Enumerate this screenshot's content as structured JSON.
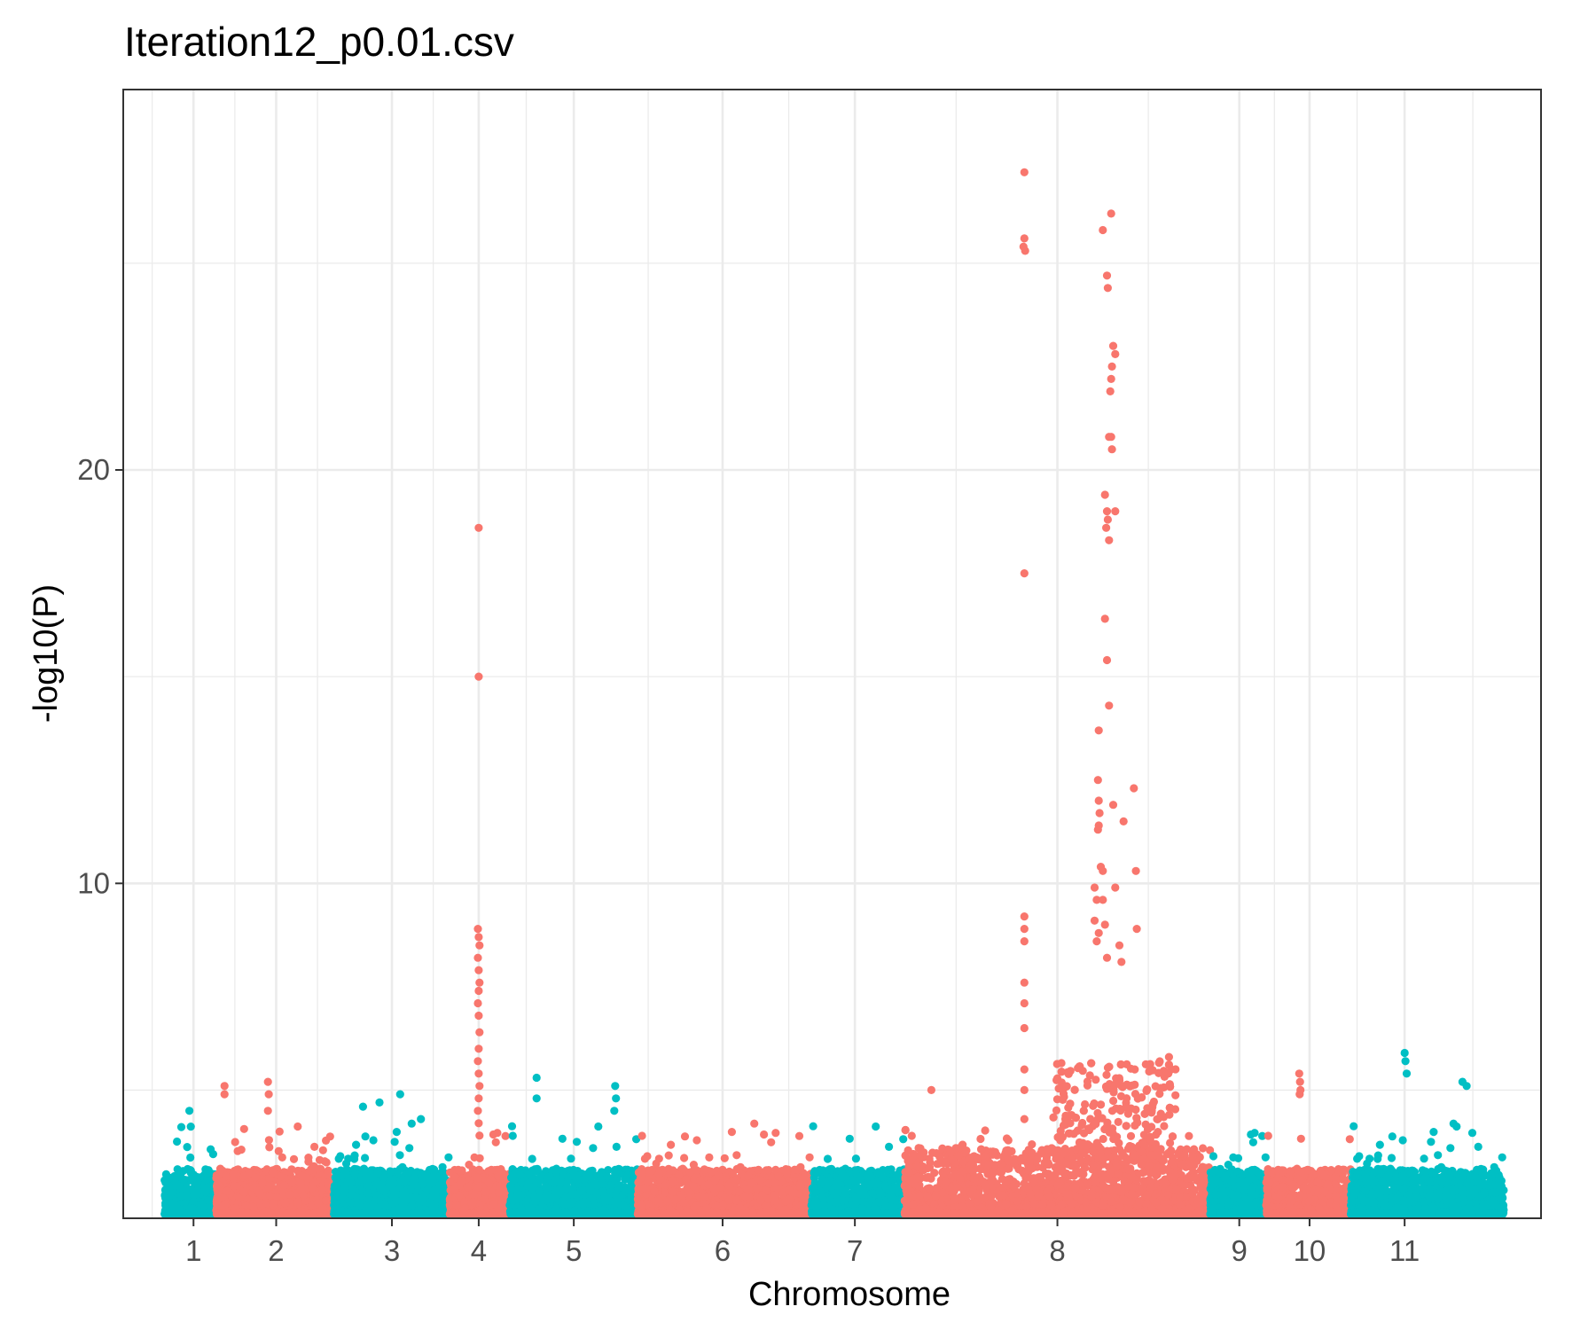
{
  "chart_data": {
    "type": "scatter",
    "title": "Iteration12_p0.01.csv",
    "xlabel": "Chromosome",
    "ylabel": "-log10(P)",
    "xlim": [
      -0.7,
      33.6
    ],
    "ylim": [
      1.9,
      29.2
    ],
    "y_major_ticks": [
      10,
      20
    ],
    "y_minor_ticks": [
      5,
      15,
      25
    ],
    "x_ticks": [
      {
        "label": "1",
        "x": 1.0
      },
      {
        "label": "2",
        "x": 3.0
      },
      {
        "label": "3",
        "x": 5.8
      },
      {
        "label": "4",
        "x": 7.9
      },
      {
        "label": "5",
        "x": 10.2
      },
      {
        "label": "6",
        "x": 13.8
      },
      {
        "label": "7",
        "x": 17.0
      },
      {
        "label": "8",
        "x": 21.9
      },
      {
        "label": "9",
        "x": 26.3
      },
      {
        "label": "10",
        "x": 28.0
      },
      {
        "label": "11",
        "x": 30.3
      }
    ],
    "x_minor_gridlines": [
      0.0,
      2.0,
      4.0,
      6.8,
      9.05,
      12.0,
      15.4,
      19.45,
      24.1,
      27.15,
      29.15,
      31.95
    ],
    "colors": {
      "odd": "#00BFC4",
      "even": "#F8766D"
    },
    "chromosomes": [
      {
        "chr": "1",
        "start": 0.3,
        "end": 1.55,
        "color": "#00BFC4"
      },
      {
        "chr": "2",
        "start": 1.55,
        "end": 4.4,
        "color": "#F8766D"
      },
      {
        "chr": "3",
        "start": 4.4,
        "end": 7.2,
        "color": "#00BFC4"
      },
      {
        "chr": "4",
        "start": 7.2,
        "end": 8.65,
        "color": "#F8766D"
      },
      {
        "chr": "5",
        "start": 8.65,
        "end": 11.75,
        "color": "#00BFC4"
      },
      {
        "chr": "6",
        "start": 11.75,
        "end": 15.95,
        "color": "#F8766D"
      },
      {
        "chr": "7",
        "start": 15.95,
        "end": 18.2,
        "color": "#00BFC4"
      },
      {
        "chr": "8",
        "start": 18.2,
        "end": 25.6,
        "color": "#F8766D"
      },
      {
        "chr": "9",
        "start": 25.6,
        "end": 26.95,
        "color": "#00BFC4"
      },
      {
        "chr": "10",
        "start": 26.95,
        "end": 29.0,
        "color": "#F8766D"
      },
      {
        "chr": "11",
        "start": 29.0,
        "end": 32.7,
        "color": "#00BFC4"
      }
    ],
    "peak_points": [
      {
        "x": 21.1,
        "y": 27.2
      },
      {
        "x": 21.1,
        "y": 25.6
      },
      {
        "x": 21.12,
        "y": 25.3
      },
      {
        "x": 21.08,
        "y": 25.4
      },
      {
        "x": 21.1,
        "y": 17.5
      },
      {
        "x": 21.1,
        "y": 9.2
      },
      {
        "x": 21.1,
        "y": 8.9
      },
      {
        "x": 21.1,
        "y": 8.6
      },
      {
        "x": 21.1,
        "y": 7.6
      },
      {
        "x": 21.1,
        "y": 7.1
      },
      {
        "x": 21.1,
        "y": 6.5
      },
      {
        "x": 21.1,
        "y": 5.5
      },
      {
        "x": 21.1,
        "y": 5.0
      },
      {
        "x": 21.1,
        "y": 4.3
      },
      {
        "x": 23.0,
        "y": 25.8
      },
      {
        "x": 23.2,
        "y": 26.2
      },
      {
        "x": 23.1,
        "y": 24.7
      },
      {
        "x": 23.12,
        "y": 24.4
      },
      {
        "x": 23.25,
        "y": 23.0
      },
      {
        "x": 23.3,
        "y": 22.8
      },
      {
        "x": 23.22,
        "y": 22.5
      },
      {
        "x": 23.2,
        "y": 22.2
      },
      {
        "x": 23.18,
        "y": 21.9
      },
      {
        "x": 23.15,
        "y": 20.8
      },
      {
        "x": 23.22,
        "y": 20.5
      },
      {
        "x": 23.2,
        "y": 20.8
      },
      {
        "x": 23.05,
        "y": 19.4
      },
      {
        "x": 23.1,
        "y": 19.0
      },
      {
        "x": 23.12,
        "y": 18.8
      },
      {
        "x": 23.08,
        "y": 18.6
      },
      {
        "x": 23.15,
        "y": 18.3
      },
      {
        "x": 23.3,
        "y": 19.0
      },
      {
        "x": 23.05,
        "y": 16.4
      },
      {
        "x": 23.1,
        "y": 15.4
      },
      {
        "x": 23.15,
        "y": 14.3
      },
      {
        "x": 22.9,
        "y": 13.7
      },
      {
        "x": 22.88,
        "y": 12.5
      },
      {
        "x": 22.9,
        "y": 12.0
      },
      {
        "x": 22.92,
        "y": 11.7
      },
      {
        "x": 22.88,
        "y": 11.3
      },
      {
        "x": 22.9,
        "y": 11.4
      },
      {
        "x": 23.25,
        "y": 11.9
      },
      {
        "x": 23.5,
        "y": 11.5
      },
      {
        "x": 23.75,
        "y": 12.3
      },
      {
        "x": 22.95,
        "y": 10.4
      },
      {
        "x": 23.0,
        "y": 10.3
      },
      {
        "x": 23.8,
        "y": 10.3
      },
      {
        "x": 22.8,
        "y": 9.9
      },
      {
        "x": 22.85,
        "y": 9.6
      },
      {
        "x": 23.0,
        "y": 9.6
      },
      {
        "x": 23.3,
        "y": 9.9
      },
      {
        "x": 23.82,
        "y": 8.9
      },
      {
        "x": 22.8,
        "y": 9.1
      },
      {
        "x": 22.9,
        "y": 8.8
      },
      {
        "x": 23.05,
        "y": 9.0
      },
      {
        "x": 23.4,
        "y": 8.5
      },
      {
        "x": 22.85,
        "y": 8.6
      },
      {
        "x": 23.1,
        "y": 8.2
      },
      {
        "x": 23.45,
        "y": 8.1
      },
      {
        "x": 7.9,
        "y": 18.6
      },
      {
        "x": 7.9,
        "y": 15.0
      },
      {
        "x": 7.88,
        "y": 8.9
      },
      {
        "x": 7.9,
        "y": 8.7
      },
      {
        "x": 7.92,
        "y": 8.5
      },
      {
        "x": 7.88,
        "y": 8.2
      },
      {
        "x": 7.9,
        "y": 7.9
      },
      {
        "x": 7.92,
        "y": 7.6
      },
      {
        "x": 7.9,
        "y": 7.4
      },
      {
        "x": 7.88,
        "y": 7.1
      },
      {
        "x": 7.9,
        "y": 6.8
      },
      {
        "x": 7.92,
        "y": 6.4
      },
      {
        "x": 7.9,
        "y": 6.0
      },
      {
        "x": 7.88,
        "y": 5.7
      },
      {
        "x": 7.9,
        "y": 5.4
      },
      {
        "x": 7.92,
        "y": 5.1
      },
      {
        "x": 7.9,
        "y": 4.8
      },
      {
        "x": 7.88,
        "y": 4.5
      },
      {
        "x": 7.9,
        "y": 4.2
      },
      {
        "x": 7.92,
        "y": 3.9
      },
      {
        "x": 27.75,
        "y": 5.4
      },
      {
        "x": 27.77,
        "y": 5.2
      },
      {
        "x": 27.78,
        "y": 5.0
      },
      {
        "x": 27.76,
        "y": 4.9
      },
      {
        "x": 30.3,
        "y": 5.9
      },
      {
        "x": 30.32,
        "y": 5.7
      },
      {
        "x": 30.35,
        "y": 5.4
      },
      {
        "x": 31.7,
        "y": 5.2
      },
      {
        "x": 31.8,
        "y": 5.1
      },
      {
        "x": 1.75,
        "y": 5.1
      },
      {
        "x": 1.75,
        "y": 4.9
      },
      {
        "x": 2.8,
        "y": 5.2
      },
      {
        "x": 2.82,
        "y": 4.9
      },
      {
        "x": 2.8,
        "y": 4.5
      },
      {
        "x": 9.3,
        "y": 5.3
      },
      {
        "x": 9.3,
        "y": 4.8
      },
      {
        "x": 11.2,
        "y": 5.1
      },
      {
        "x": 11.22,
        "y": 4.8
      },
      {
        "x": 11.18,
        "y": 4.5
      },
      {
        "x": 6.0,
        "y": 4.9
      },
      {
        "x": 5.1,
        "y": 4.6
      },
      {
        "x": 5.5,
        "y": 4.7
      },
      {
        "x": 6.5,
        "y": 4.3
      },
      {
        "x": 18.85,
        "y": 5.0
      },
      {
        "x": 0.9,
        "y": 4.5
      },
      {
        "x": 24.6,
        "y": 5.8
      },
      {
        "x": 24.65,
        "y": 5.5
      }
    ]
  }
}
